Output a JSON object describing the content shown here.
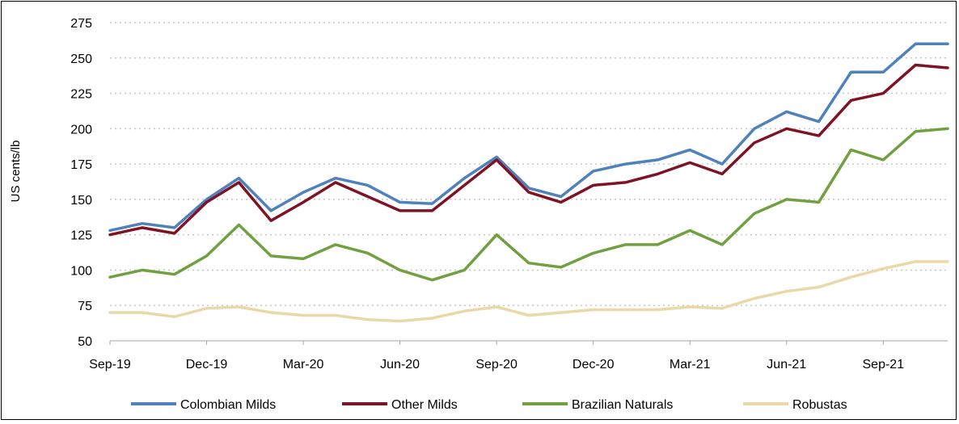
{
  "chart_data": {
    "type": "line",
    "title": "",
    "xlabel": "",
    "ylabel": "US cents/lb",
    "ylim": [
      50,
      275
    ],
    "yticks": [
      "275",
      "250",
      "225",
      "200",
      "175",
      "150",
      "125",
      "100",
      "75",
      "50"
    ],
    "xticks": [
      "Sep-19",
      "Dec-19",
      "Mar-20",
      "Jun-20",
      "Sep-20",
      "Dec-20",
      "Mar-21",
      "Jun-21",
      "Sep-21"
    ],
    "x": [
      "Sep-19",
      "Oct-19",
      "Nov-19",
      "Dec-19",
      "Jan-20",
      "Feb-20",
      "Mar-20",
      "Apr-20",
      "May-20",
      "Jun-20",
      "Jul-20",
      "Aug-20",
      "Sep-20",
      "Oct-20",
      "Nov-20",
      "Dec-20",
      "Jan-21",
      "Feb-21",
      "Mar-21",
      "Apr-21",
      "May-21",
      "Jun-21",
      "Jul-21",
      "Aug-21",
      "Sep-21",
      "Oct-21",
      "Nov-21"
    ],
    "grid": "horizontal dotted",
    "legend_position": "bottom",
    "series": [
      {
        "name": "Colombian Milds",
        "color": "#4F81BD",
        "values": [
          128,
          133,
          130,
          150,
          165,
          142,
          155,
          165,
          160,
          148,
          147,
          165,
          180,
          158,
          152,
          170,
          175,
          178,
          185,
          175,
          200,
          212,
          205,
          240,
          240,
          260,
          260
        ]
      },
      {
        "name": "Other Milds",
        "color": "#7F1326",
        "values": [
          125,
          130,
          126,
          148,
          162,
          135,
          148,
          162,
          152,
          142,
          142,
          160,
          178,
          155,
          148,
          160,
          162,
          168,
          176,
          168,
          190,
          200,
          195,
          220,
          225,
          245,
          243
        ]
      },
      {
        "name": "Brazilian Naturals",
        "color": "#70A040",
        "values": [
          95,
          100,
          97,
          110,
          132,
          110,
          108,
          118,
          112,
          100,
          93,
          100,
          125,
          105,
          102,
          112,
          118,
          118,
          128,
          118,
          140,
          150,
          148,
          185,
          178,
          198,
          200
        ]
      },
      {
        "name": "Robustas",
        "color": "#EBD8A8",
        "values": [
          70,
          70,
          67,
          73,
          74,
          70,
          68,
          68,
          65,
          64,
          66,
          71,
          74,
          68,
          70,
          72,
          72,
          72,
          74,
          73,
          80,
          85,
          88,
          95,
          101,
          106,
          106
        ]
      }
    ]
  }
}
